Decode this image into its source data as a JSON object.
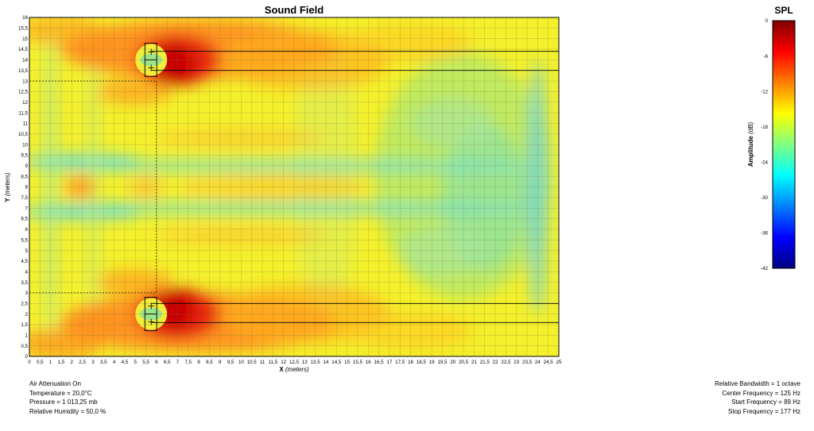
{
  "chart_data": {
    "type": "heatmap",
    "title": "Sound Field",
    "xlabel": "X",
    "xlabel_unit": "(meters)",
    "ylabel": "Y",
    "ylabel_unit": "(meters)",
    "xlim": [
      0,
      25
    ],
    "ylim": [
      0,
      16
    ],
    "x_ticks": [
      "0",
      "0,5",
      "1",
      "1,5",
      "2",
      "2,5",
      "3",
      "3,5",
      "4",
      "4,5",
      "5",
      "5,5",
      "6",
      "6,5",
      "7",
      "7,5",
      "8",
      "8,5",
      "9",
      "9,5",
      "10",
      "10,5",
      "11",
      "11,5",
      "12",
      "12,5",
      "13",
      "13,5",
      "14",
      "14,5",
      "15",
      "15,5",
      "16",
      "16,5",
      "17",
      "17,5",
      "18",
      "18,5",
      "19",
      "19,5",
      "20",
      "20,5",
      "21",
      "21,5",
      "22",
      "22,5",
      "23",
      "23,5",
      "24",
      "24,5",
      "25"
    ],
    "y_ticks": [
      "0",
      "0,5",
      "1",
      "1,5",
      "2",
      "2,5",
      "3",
      "3,5",
      "4",
      "4,5",
      "5",
      "5,5",
      "6",
      "6,5",
      "7",
      "7,5",
      "8",
      "8,5",
      "9",
      "9,5",
      "10",
      "10,5",
      "11",
      "11,5",
      "12",
      "12,5",
      "13",
      "13,5",
      "14",
      "14,5",
      "15",
      "15,5",
      "16"
    ],
    "grid": true,
    "sources": [
      {
        "x": 5.75,
        "y": 14.0
      },
      {
        "x": 5.75,
        "y": 2.0
      }
    ],
    "listener_marks": [
      {
        "x": 6.0,
        "y": 13.0
      },
      {
        "x": 6.0,
        "y": 3.0
      }
    ],
    "beam_lines_y": [
      14.4,
      13.5,
      2.5,
      1.6
    ],
    "colorbar": {
      "title": "SPL",
      "label": "Amplitude",
      "unit": "(dB)",
      "range": [
        -42,
        0
      ],
      "ticks": [
        "0",
        "-6",
        "-12",
        "-18",
        "-24",
        "-30",
        "-36",
        "-42"
      ],
      "colormap": "jet"
    }
  },
  "info_left": [
    "Air Attenuation On",
    "Temperature = 20,0°C",
    "Pressure = 1 013,25  mb",
    "Relative Humidity = 50,0 %"
  ],
  "info_right": [
    "Relative Bandwidth = 1 octave",
    "Center Frequency = 125 Hz",
    "Start Frequency = 89 Hz",
    "Stop Frequency = 177 Hz"
  ]
}
